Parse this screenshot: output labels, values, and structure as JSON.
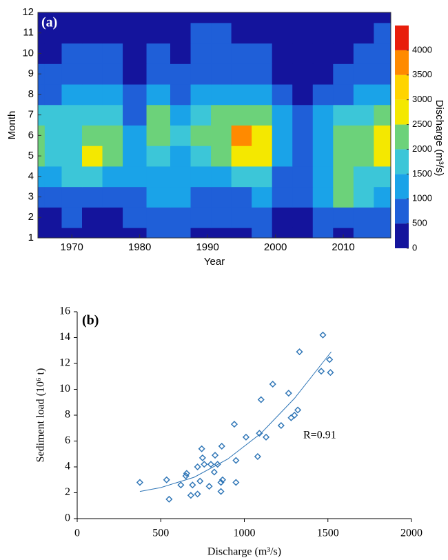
{
  "chart_data": [
    {
      "type": "contour",
      "panel_label": "(a)",
      "xlabel": "Year",
      "ylabel": "Month",
      "colorbar_label": "Discharge (m³/s)",
      "x": [
        1965,
        1967,
        1970,
        1973,
        1976,
        1979,
        1983,
        1986,
        1989,
        1992,
        1995,
        1998,
        2001,
        2004,
        2007,
        2010,
        2013,
        2016
      ],
      "y": [
        1,
        2,
        3,
        4,
        5,
        6,
        7,
        8,
        9,
        10,
        11,
        12
      ],
      "z": [
        [
          300,
          200,
          400,
          300,
          200,
          300,
          500,
          600,
          400,
          300,
          300,
          600,
          300,
          200,
          500,
          400,
          500,
          600
        ],
        [
          400,
          300,
          500,
          400,
          300,
          500,
          700,
          700,
          600,
          500,
          500,
          800,
          400,
          300,
          700,
          800,
          700,
          700
        ],
        [
          800,
          700,
          800,
          900,
          700,
          700,
          1000,
          1000,
          900,
          900,
          900,
          1300,
          700,
          500,
          1000,
          2200,
          1500,
          1200
        ],
        [
          1400,
          1200,
          1500,
          1800,
          1300,
          1000,
          1200,
          1100,
          1200,
          1300,
          1600,
          1800,
          900,
          600,
          1100,
          2300,
          1600,
          1600
        ],
        [
          2100,
          1800,
          1600,
          2600,
          2300,
          1100,
          1800,
          1400,
          1800,
          2100,
          2800,
          2500,
          1300,
          700,
          1400,
          2400,
          2100,
          2600
        ],
        [
          2200,
          1900,
          1800,
          2400,
          2300,
          1000,
          2200,
          1500,
          2000,
          2300,
          3900,
          2600,
          1400,
          800,
          1200,
          2100,
          2300,
          2600
        ],
        [
          1700,
          1500,
          1600,
          1800,
          1700,
          800,
          2100,
          1400,
          1900,
          2000,
          2200,
          2000,
          1000,
          700,
          1000,
          1600,
          1800,
          2100
        ],
        [
          900,
          800,
          1000,
          1100,
          1000,
          500,
          1100,
          900,
          1100,
          1200,
          1200,
          1000,
          600,
          400,
          600,
          900,
          1000,
          1300
        ],
        [
          600,
          500,
          600,
          700,
          700,
          300,
          600,
          500,
          700,
          700,
          700,
          600,
          400,
          300,
          400,
          600,
          600,
          800
        ],
        [
          400,
          400,
          500,
          500,
          500,
          300,
          500,
          400,
          600,
          600,
          600,
          500,
          300,
          200,
          300,
          400,
          500,
          600
        ],
        [
          300,
          300,
          400,
          400,
          400,
          200,
          400,
          300,
          500,
          500,
          400,
          400,
          200,
          200,
          300,
          400,
          400,
          500
        ],
        [
          200,
          300,
          300,
          300,
          300,
          200,
          300,
          300,
          400,
          400,
          300,
          300,
          200,
          200,
          300,
          300,
          400,
          400
        ]
      ],
      "xlim": [
        1965,
        2017
      ],
      "xticks": [
        1970,
        1980,
        1990,
        2000,
        2010
      ],
      "ylim": [
        1,
        12
      ],
      "yticks": [
        1,
        2,
        3,
        4,
        5,
        6,
        7,
        8,
        9,
        10,
        11,
        12
      ],
      "levels": [
        0,
        500,
        1000,
        1500,
        2000,
        2500,
        3000,
        3500,
        4000,
        4500
      ],
      "colors": [
        "#14149c",
        "#1f5fd8",
        "#1aa3e8",
        "#3cc6d8",
        "#6cd27a",
        "#f4e800",
        "#ffd400",
        "#ff8a00",
        "#e81e0c"
      ],
      "cticks": [
        0,
        500,
        1000,
        1500,
        2000,
        2500,
        3000,
        3500,
        4000
      ]
    },
    {
      "type": "scatter",
      "panel_label": "(b)",
      "xlabel": "Discharge (m³/s)",
      "ylabel": "Sediment load (10⁶ t)",
      "annotation": "R=0.91",
      "color": "#2e75b6",
      "x": [
        375,
        535,
        550,
        620,
        650,
        655,
        680,
        690,
        720,
        720,
        735,
        745,
        750,
        760,
        790,
        800,
        820,
        825,
        840,
        860,
        860,
        865,
        870,
        940,
        950,
        950,
        1010,
        1080,
        1090,
        1100,
        1130,
        1170,
        1220,
        1265,
        1280,
        1300,
        1320,
        1330,
        1460,
        1470,
        1510,
        1515
      ],
      "values": [
        2.8,
        3.0,
        1.5,
        2.6,
        3.3,
        3.5,
        1.8,
        2.6,
        4.0,
        1.9,
        2.9,
        5.4,
        4.7,
        4.2,
        2.5,
        4.2,
        3.6,
        4.9,
        4.2,
        2.1,
        2.8,
        5.6,
        3.0,
        7.3,
        2.8,
        4.5,
        6.3,
        4.8,
        6.6,
        9.2,
        6.3,
        10.4,
        7.2,
        9.7,
        7.8,
        8.0,
        8.4,
        12.9,
        11.4,
        14.2,
        12.3,
        11.3
      ],
      "trend": {
        "x": [
          375,
          500,
          700,
          900,
          1100,
          1300,
          1520
        ],
        "values": [
          2.1,
          2.4,
          3.2,
          4.6,
          6.6,
          9.3,
          12.9
        ]
      },
      "xlim": [
        0,
        2000
      ],
      "xticks": [
        0,
        500,
        1000,
        1500,
        2000
      ],
      "ylim": [
        0,
        16
      ],
      "yticks": [
        0,
        2,
        4,
        6,
        8,
        10,
        12,
        14,
        16
      ]
    }
  ]
}
